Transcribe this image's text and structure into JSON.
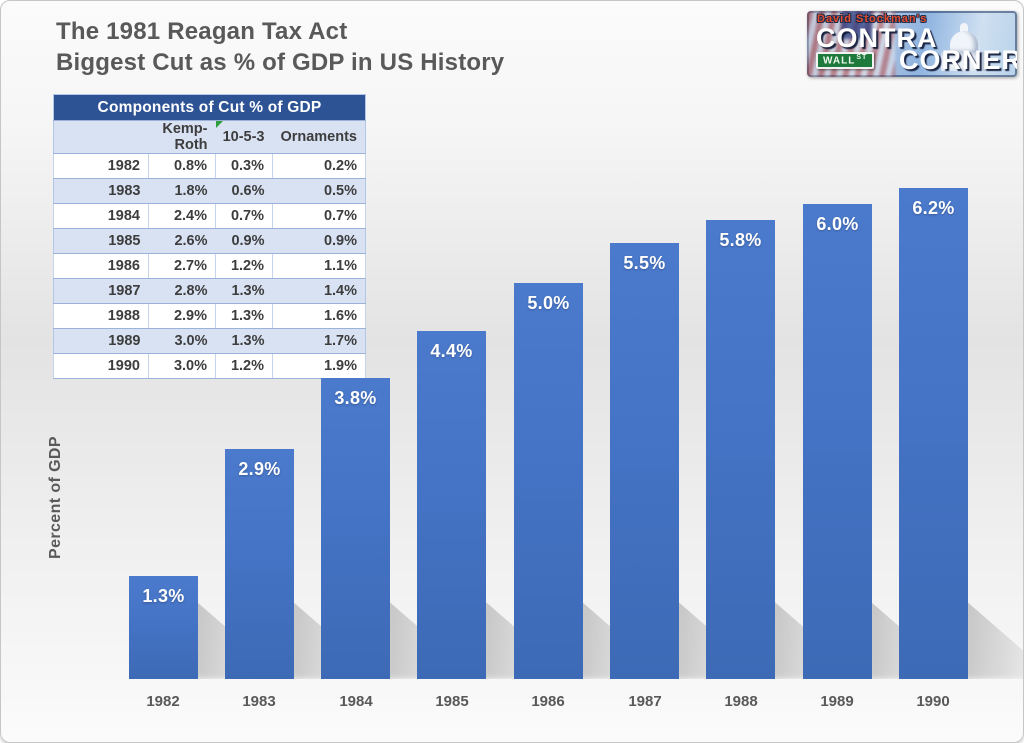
{
  "page": {
    "title_line1": "The 1981 Reagan Tax Act",
    "title_line2": "Biggest Cut as % of GDP in US History"
  },
  "logo": {
    "tagline": "David Stockman's",
    "word1": "CONTRA",
    "word2": "CORNER",
    "sign_word": "WALL",
    "sign_suffix": "ST"
  },
  "table": {
    "title": "Components of Cut % of GDP",
    "columns": [
      "",
      "Kemp-Roth",
      "10-5-3",
      "Ornaments"
    ],
    "rows": [
      [
        "1982",
        "0.8%",
        "0.3%",
        "0.2%"
      ],
      [
        "1983",
        "1.8%",
        "0.6%",
        "0.5%"
      ],
      [
        "1984",
        "2.4%",
        "0.7%",
        "0.7%"
      ],
      [
        "1985",
        "2.6%",
        "0.9%",
        "0.9%"
      ],
      [
        "1986",
        "2.7%",
        "1.2%",
        "1.1%"
      ],
      [
        "1987",
        "2.8%",
        "1.3%",
        "1.4%"
      ],
      [
        "1988",
        "2.9%",
        "1.3%",
        "1.6%"
      ],
      [
        "1989",
        "3.0%",
        "1.3%",
        "1.7%"
      ],
      [
        "1990",
        "3.0%",
        "1.2%",
        "1.9%"
      ]
    ]
  },
  "chart_data": {
    "type": "bar",
    "title": "The 1981 Reagan Tax Act — Biggest Cut as % of GDP in US History",
    "categories": [
      "1982",
      "1983",
      "1984",
      "1985",
      "1986",
      "1987",
      "1988",
      "1989",
      "1990"
    ],
    "values": [
      1.3,
      2.9,
      3.8,
      4.4,
      5.0,
      5.5,
      5.8,
      6.0,
      6.2
    ],
    "data_labels": [
      "1.3%",
      "2.9%",
      "3.8%",
      "4.4%",
      "5.0%",
      "5.5%",
      "5.8%",
      "6.0%",
      "6.2%"
    ],
    "xlabel": "",
    "ylabel": "Percent of GDP",
    "ylim": [
      0,
      6.5
    ],
    "grid": false,
    "legend": false,
    "bar_color": "#4472C4",
    "bar_label_color": "#FFFFFF"
  },
  "colors": {
    "accent": "#4472C4",
    "table_header_bg": "#2E5395",
    "table_band": "#D9E2F3",
    "table_border": "#9DB2D9",
    "text": "#595959"
  }
}
